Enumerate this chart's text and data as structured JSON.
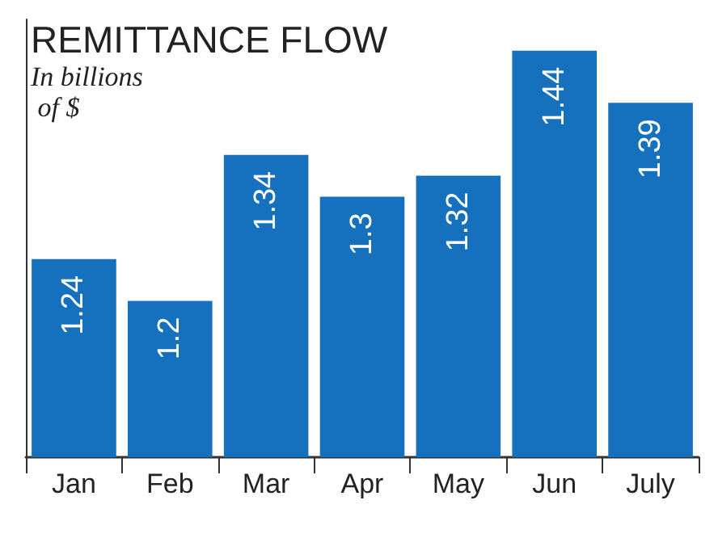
{
  "chart_data": {
    "type": "bar",
    "title": "REMITTANCE FLOW",
    "subtitle": "In billions of $",
    "categories": [
      "Jan",
      "Feb",
      "Mar",
      "Apr",
      "May",
      "Jun",
      "July"
    ],
    "values": [
      1.24,
      1.2,
      1.34,
      1.3,
      1.32,
      1.44,
      1.39
    ],
    "color": "#1570bd",
    "ylim": [
      1.05,
      1.47
    ],
    "tick_labels": "x",
    "data_labels": true
  }
}
